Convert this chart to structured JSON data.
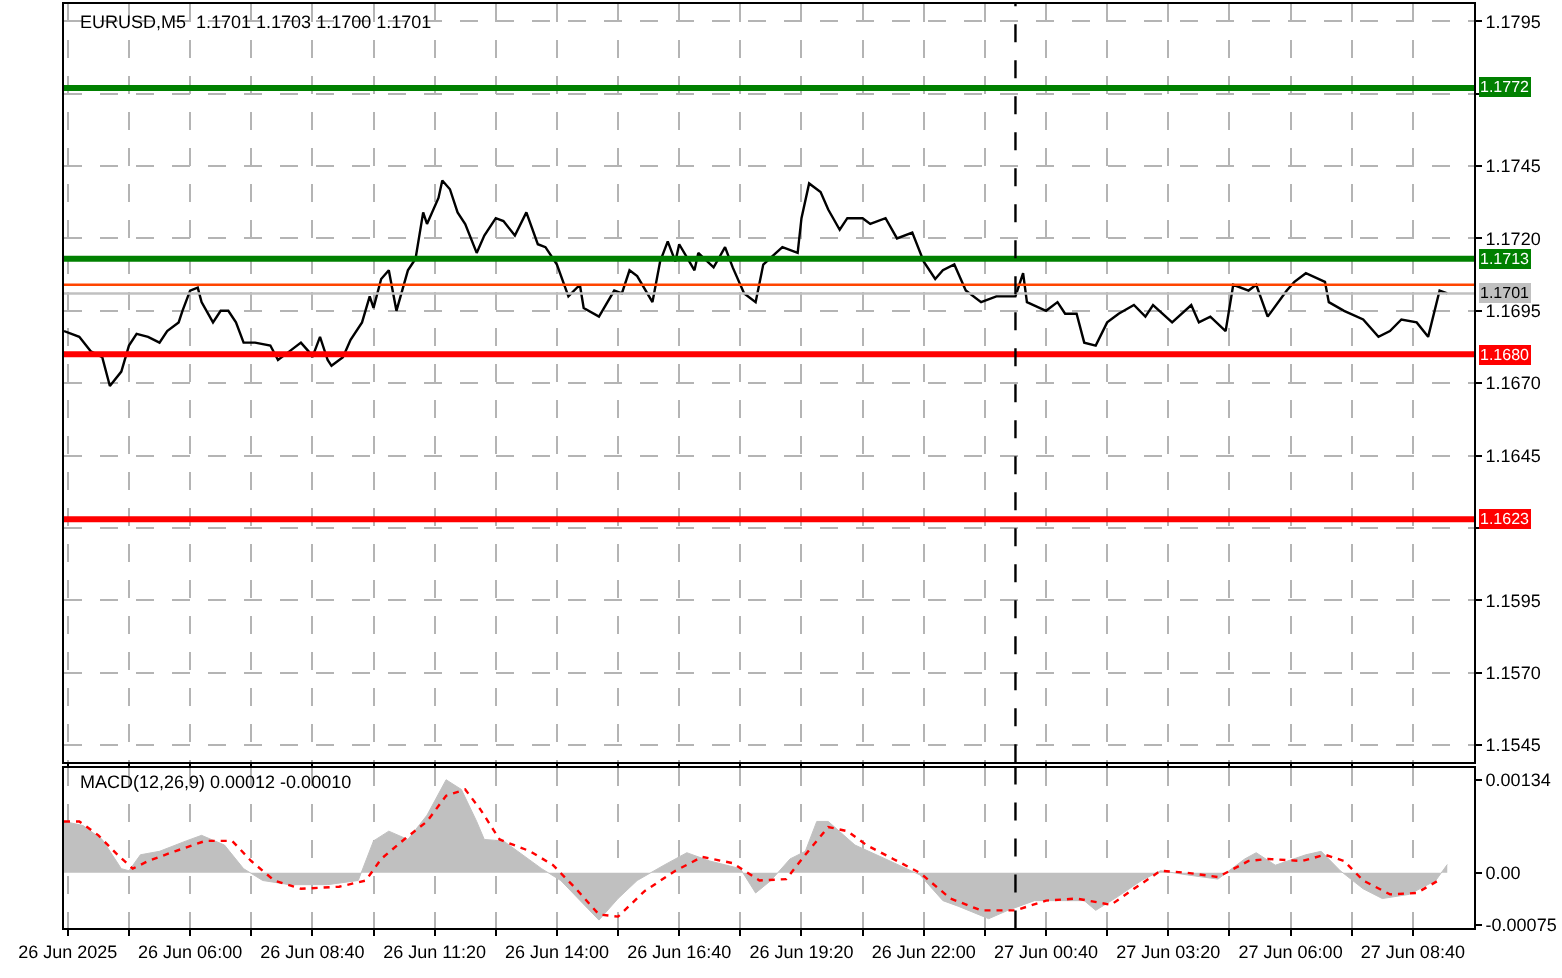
{
  "chart_data": [
    {
      "type": "line",
      "title": "EURUSD,M5  1.1701 1.1703 1.1700 1.1701",
      "x": [
        "2025-06-26T03:15",
        "2025-06-26T03:35",
        "2025-06-26T03:50",
        "2025-06-26T04:05",
        "2025-06-26T04:15",
        "2025-06-26T04:30",
        "2025-06-26T04:40",
        "2025-06-26T04:50",
        "2025-06-26T05:05",
        "2025-06-26T05:20",
        "2025-06-26T05:30",
        "2025-06-26T05:45",
        "2025-06-26T05:50",
        "2025-06-26T06:00",
        "2025-06-26T06:10",
        "2025-06-26T06:15",
        "2025-06-26T06:30",
        "2025-06-26T06:40",
        "2025-06-26T06:50",
        "2025-06-26T07:00",
        "2025-06-26T07:10",
        "2025-06-26T07:25",
        "2025-06-26T07:45",
        "2025-06-26T07:55",
        "2025-06-26T08:10",
        "2025-06-26T08:25",
        "2025-06-26T08:35",
        "2025-06-26T08:40",
        "2025-06-26T08:50",
        "2025-06-26T09:00",
        "2025-06-26T09:05",
        "2025-06-26T09:20",
        "2025-06-26T09:30",
        "2025-06-26T09:45",
        "2025-06-26T09:55",
        "2025-06-26T10:00",
        "2025-06-26T10:10",
        "2025-06-26T10:20",
        "2025-06-26T10:30",
        "2025-06-26T10:45",
        "2025-06-26T10:55",
        "2025-06-26T11:05",
        "2025-06-26T11:10",
        "2025-06-26T11:25",
        "2025-06-26T11:30",
        "2025-06-26T11:40",
        "2025-06-26T11:50",
        "2025-06-26T12:00",
        "2025-06-26T12:15",
        "2025-06-26T12:25",
        "2025-06-26T12:40",
        "2025-06-26T12:50",
        "2025-06-26T13:05",
        "2025-06-26T13:20",
        "2025-06-26T13:35",
        "2025-06-26T13:45",
        "2025-06-26T14:00",
        "2025-06-26T14:15",
        "2025-06-26T14:30",
        "2025-06-26T14:35",
        "2025-06-26T14:55",
        "2025-06-26T15:15",
        "2025-06-26T15:25",
        "2025-06-26T15:35",
        "2025-06-26T15:45",
        "2025-06-26T16:05",
        "2025-06-26T16:15",
        "2025-06-26T16:25",
        "2025-06-26T16:35",
        "2025-06-26T16:40",
        "2025-06-26T17:00",
        "2025-06-26T17:05",
        "2025-06-26T17:25",
        "2025-06-26T17:40",
        "2025-06-26T17:50",
        "2025-06-26T18:05",
        "2025-06-26T18:20",
        "2025-06-26T18:30",
        "2025-06-26T18:55",
        "2025-06-26T19:15",
        "2025-06-26T19:20",
        "2025-06-26T19:30",
        "2025-06-26T19:45",
        "2025-06-26T19:55",
        "2025-06-26T20:10",
        "2025-06-26T20:20",
        "2025-06-26T20:40",
        "2025-06-26T20:50",
        "2025-06-26T21:10",
        "2025-06-26T21:25",
        "2025-06-26T21:45",
        "2025-06-26T22:00",
        "2025-06-26T22:15",
        "2025-06-26T22:25",
        "2025-06-26T22:40",
        "2025-06-26T22:55",
        "2025-06-26T23:15",
        "2025-06-26T23:35",
        "2025-06-27T00:00",
        "2025-06-27T00:10",
        "2025-06-27T00:15",
        "2025-06-27T00:40",
        "2025-06-27T00:55",
        "2025-06-27T01:05",
        "2025-06-27T01:20",
        "2025-06-27T01:30",
        "2025-06-27T01:45",
        "2025-06-27T02:00",
        "2025-06-27T02:15",
        "2025-06-27T02:35",
        "2025-06-27T02:50",
        "2025-06-27T03:00",
        "2025-06-27T03:25",
        "2025-06-27T03:50",
        "2025-06-27T04:00",
        "2025-06-27T04:15",
        "2025-06-27T04:35",
        "2025-06-27T04:45",
        "2025-06-27T05:05",
        "2025-06-27T05:15",
        "2025-06-27T05:30",
        "2025-06-27T05:55",
        "2025-06-27T06:05",
        "2025-06-27T06:20",
        "2025-06-27T06:45",
        "2025-06-27T06:50",
        "2025-06-27T07:10",
        "2025-06-27T07:35",
        "2025-06-27T07:55",
        "2025-06-27T08:10",
        "2025-06-27T08:25",
        "2025-06-27T08:45",
        "2025-06-27T09:00",
        "2025-06-27T09:15",
        "2025-06-27T09:25"
      ],
      "series": [
        {
          "color": "#000000",
          "values": [
            1.1688,
            1.1686,
            1.1681,
            1.1679,
            1.1669,
            1.1674,
            1.1683,
            1.1687,
            1.1686,
            1.1684,
            1.1688,
            1.1691,
            1.1695,
            1.1702,
            1.1703,
            1.1698,
            1.1691,
            1.1695,
            1.1695,
            1.1691,
            1.1684,
            1.1684,
            1.1683,
            1.1678,
            1.1681,
            1.1684,
            1.1681,
            1.1679,
            1.1686,
            1.1678,
            1.1676,
            1.1679,
            1.1685,
            1.1691,
            1.17,
            1.1696,
            1.1706,
            1.1709,
            1.1695,
            1.1709,
            1.1713,
            1.1729,
            1.1725,
            1.1734,
            1.174,
            1.1737,
            1.1729,
            1.1725,
            1.1715,
            1.1721,
            1.1727,
            1.1726,
            1.1721,
            1.1729,
            1.1718,
            1.1717,
            1.1711,
            1.17,
            1.1704,
            1.1696,
            1.1693,
            1.1702,
            1.1701,
            1.1709,
            1.1707,
            1.1698,
            1.1712,
            1.1719,
            1.1712,
            1.1718,
            1.1709,
            1.1715,
            1.171,
            1.1717,
            1.171,
            1.1701,
            1.1698,
            1.1711,
            1.1717,
            1.1715,
            1.1727,
            1.1739,
            1.1736,
            1.173,
            1.1723,
            1.1727,
            1.1727,
            1.1725,
            1.1727,
            1.172,
            1.1722,
            1.1712,
            1.1706,
            1.1709,
            1.1711,
            1.1702,
            1.1698,
            1.17,
            1.17,
            1.1708,
            1.1698,
            1.1695,
            1.1698,
            1.1694,
            1.1694,
            1.1684,
            1.1683,
            1.1691,
            1.1694,
            1.1697,
            1.1693,
            1.1697,
            1.1691,
            1.1697,
            1.1691,
            1.1693,
            1.1688,
            1.1704,
            1.1702,
            1.1704,
            1.1693,
            1.1702,
            1.1705,
            1.1708,
            1.1705,
            1.1698,
            1.1695,
            1.1692,
            1.1686,
            1.1688,
            1.1692,
            1.1691,
            1.1686,
            1.1702,
            1.1701
          ]
        }
      ],
      "xlim": [
        "2025-06-26T03:15",
        "2025-06-27T10:00"
      ],
      "xticks": [
        {
          "value": "2025-06-26T03:20",
          "label": null
        },
        {
          "value": "2025-06-26T04:40",
          "label": null
        },
        {
          "value": "2025-06-26T06:00",
          "label": null
        },
        {
          "value": "2025-06-26T07:20",
          "label": null
        },
        {
          "value": "2025-06-26T08:40",
          "label": null
        },
        {
          "value": "2025-06-26T10:00",
          "label": null
        },
        {
          "value": "2025-06-26T11:20",
          "label": null
        },
        {
          "value": "2025-06-26T12:40",
          "label": null
        },
        {
          "value": "2025-06-26T14:00",
          "label": null
        },
        {
          "value": "2025-06-26T15:20",
          "label": null
        },
        {
          "value": "2025-06-26T16:40",
          "label": null
        },
        {
          "value": "2025-06-26T18:00",
          "label": null
        },
        {
          "value": "2025-06-26T19:20",
          "label": null
        },
        {
          "value": "2025-06-26T20:40",
          "label": null
        },
        {
          "value": "2025-06-26T22:00",
          "label": null
        },
        {
          "value": "2025-06-26T23:20",
          "label": null
        },
        {
          "value": "2025-06-27T00:40",
          "label": null
        },
        {
          "value": "2025-06-27T02:00",
          "label": null
        },
        {
          "value": "2025-06-27T03:20",
          "label": null
        },
        {
          "value": "2025-06-27T04:40",
          "label": null
        },
        {
          "value": "2025-06-27T06:00",
          "label": null
        },
        {
          "value": "2025-06-27T07:20",
          "label": null
        },
        {
          "value": "2025-06-27T08:40",
          "label": null
        }
      ],
      "ylim": [
        1.1539,
        1.1801
      ],
      "yticks": [
        {
          "value": 1.1795,
          "label": "1.1795"
        },
        {
          "value": 1.177,
          "label": null
        },
        {
          "value": 1.1745,
          "label": "1.1745"
        },
        {
          "value": 1.172,
          "label": "1.1720"
        },
        {
          "value": 1.1695,
          "label": "1.1695"
        },
        {
          "value": 1.167,
          "label": "1.1670"
        },
        {
          "value": 1.1645,
          "label": "1.1645"
        },
        {
          "value": 1.162,
          "label": null
        },
        {
          "value": 1.1595,
          "label": "1.1595"
        },
        {
          "value": 1.157,
          "label": "1.1570"
        },
        {
          "value": 1.1545,
          "label": "1.1545"
        }
      ],
      "ref_lines": [
        {
          "axis": "y",
          "value": 1.1772,
          "label": "1.1772",
          "color": "#008000"
        },
        {
          "axis": "y",
          "value": 1.1713,
          "label": "1.1713",
          "color": "#008000"
        },
        {
          "axis": "y",
          "value": 1.1704,
          "color": "#ff4500"
        },
        {
          "axis": "y",
          "value": 1.1701,
          "label": "1.1701",
          "color": "#c0c0c0"
        },
        {
          "axis": "y",
          "value": 1.168,
          "label": "1.1680",
          "color": "#ff0000"
        },
        {
          "axis": "y",
          "value": 1.1623,
          "label": "1.1623",
          "color": "#ff0000"
        },
        {
          "axis": "x",
          "value": "2025-06-27T00:00",
          "color": "#000000",
          "line_style": "dashed"
        }
      ],
      "grid": true,
      "tick_labels": "y"
    },
    {
      "type": "line",
      "title": "MACD(12,26,9) 0.00012 -0.00010",
      "series": [
        {
          "type": "area",
          "color": "#c0c0c0",
          "x": [
            "2025-06-26T03:15",
            "2025-06-26T03:40",
            "2025-06-26T04:05",
            "2025-06-26T04:30",
            "2025-06-26T04:40",
            "2025-06-26T04:55",
            "2025-06-26T05:20",
            "2025-06-26T05:55",
            "2025-06-26T06:15",
            "2025-06-26T06:45",
            "2025-06-26T07:10",
            "2025-06-26T07:35",
            "2025-06-26T08:10",
            "2025-06-26T09:00",
            "2025-06-26T09:40",
            "2025-06-26T10:00",
            "2025-06-26T10:20",
            "2025-06-26T10:45",
            "2025-06-26T11:10",
            "2025-06-26T11:35",
            "2025-06-26T11:55",
            "2025-06-26T12:15",
            "2025-06-26T12:25",
            "2025-06-26T12:50",
            "2025-06-26T13:40",
            "2025-06-26T14:05",
            "2025-06-26T14:40",
            "2025-06-26T14:55",
            "2025-06-26T15:20",
            "2025-06-26T15:45",
            "2025-06-26T16:20",
            "2025-06-26T16:50",
            "2025-06-26T17:20",
            "2025-06-26T18:00",
            "2025-06-26T18:20",
            "2025-06-26T18:40",
            "2025-06-26T19:05",
            "2025-06-26T19:25",
            "2025-06-26T19:40",
            "2025-06-26T19:55",
            "2025-06-26T20:30",
            "2025-06-26T21:10",
            "2025-06-26T21:55",
            "2025-06-26T22:25",
            "2025-06-26T22:45",
            "2025-06-26T23:25",
            "2025-06-26T23:50",
            "2025-06-27T00:25",
            "2025-06-27T01:30",
            "2025-06-27T01:45",
            "2025-06-27T02:10",
            "2025-06-27T02:45",
            "2025-06-27T03:10",
            "2025-06-27T03:45",
            "2025-06-27T04:25",
            "2025-06-27T05:00",
            "2025-06-27T05:15",
            "2025-06-27T05:40",
            "2025-06-27T06:20",
            "2025-06-27T06:40",
            "2025-06-27T07:05",
            "2025-06-27T07:35",
            "2025-06-27T08:00",
            "2025-06-27T08:35",
            "2025-06-27T09:10",
            "2025-06-27T09:25"
          ],
          "values": [
            0.00074,
            0.00068,
            0.00048,
            6e-05,
            3e-05,
            0.00026,
            0.00031,
            0.00046,
            0.00054,
            0.0004,
            6e-05,
            -0.00011,
            -0.00017,
            -0.00017,
            -0.00011,
            0.00046,
            0.0006,
            0.00048,
            0.00083,
            0.00134,
            0.0012,
            0.00074,
            0.00048,
            0.00046,
            6e-05,
            -0.00011,
            -0.00051,
            -0.00068,
            -0.00037,
            -0.00011,
            0.00011,
            0.00029,
            0.00017,
            6e-05,
            -0.00029,
            -0.00011,
            0.0002,
            0.00031,
            0.00074,
            0.00074,
            0.0004,
            0.0002,
            -3e-05,
            -0.0004,
            -0.00048,
            -0.00066,
            -0.00054,
            -0.0004,
            -0.0004,
            -0.00054,
            -0.00037,
            -0.00011,
            3e-05,
            -3e-05,
            -9e-05,
            0.0002,
            0.00029,
            0.00011,
            0.00026,
            0.00031,
            3e-05,
            -0.00023,
            -0.00037,
            -0.00031,
            -0.00011,
            0.00012
          ]
        },
        {
          "type": "line",
          "color": "#ff0000",
          "line_style": "dotted",
          "x": [
            "2025-06-26T03:15",
            "2025-06-26T03:35",
            "2025-06-26T04:00",
            "2025-06-26T04:25",
            "2025-06-26T04:45",
            "2025-06-26T05:05",
            "2025-06-26T05:40",
            "2025-06-26T06:20",
            "2025-06-26T06:55",
            "2025-06-26T07:20",
            "2025-06-26T07:50",
            "2025-06-26T08:25",
            "2025-06-26T09:15",
            "2025-06-26T09:50",
            "2025-06-26T10:10",
            "2025-06-26T10:40",
            "2025-06-26T11:10",
            "2025-06-26T11:35",
            "2025-06-26T12:00",
            "2025-06-26T12:20",
            "2025-06-26T12:45",
            "2025-06-26T13:25",
            "2025-06-26T13:55",
            "2025-06-26T14:25",
            "2025-06-26T14:55",
            "2025-06-26T15:20",
            "2025-06-26T15:55",
            "2025-06-26T16:35",
            "2025-06-26T17:10",
            "2025-06-26T17:50",
            "2025-06-26T18:25",
            "2025-06-26T19:00",
            "2025-06-26T19:25",
            "2025-06-26T19:55",
            "2025-06-26T20:20",
            "2025-06-26T20:45",
            "2025-06-26T21:20",
            "2025-06-26T21:55",
            "2025-06-26T22:35",
            "2025-06-26T23:15",
            "2025-06-27T00:00",
            "2025-06-27T00:40",
            "2025-06-27T01:20",
            "2025-06-27T02:05",
            "2025-06-27T02:35",
            "2025-06-27T03:10",
            "2025-06-27T03:45",
            "2025-06-27T04:25",
            "2025-06-27T05:05",
            "2025-06-27T05:30",
            "2025-06-27T06:15",
            "2025-06-27T06:45",
            "2025-06-27T07:10",
            "2025-06-27T07:35",
            "2025-06-27T08:10",
            "2025-06-27T08:45",
            "2025-06-27T09:15"
          ],
          "values": [
            0.00074,
            0.00074,
            0.00054,
            0.00026,
            6e-05,
            0.00017,
            0.00031,
            0.00046,
            0.00046,
            0.00017,
            -0.00011,
            -0.00023,
            -0.0002,
            -0.00011,
            0.0002,
            0.00048,
            0.00074,
            0.00111,
            0.0012,
            0.00091,
            0.00048,
            0.00031,
            0.00011,
            -0.00023,
            -0.0006,
            -0.00063,
            -0.00026,
            3e-05,
            0.00023,
            0.00014,
            -0.00011,
            -9e-05,
            0.00026,
            0.00066,
            0.0006,
            0.0004,
            0.0002,
            0,
            -0.00037,
            -0.00054,
            -0.00054,
            -0.0004,
            -0.00037,
            -0.00046,
            -0.00023,
            3e-05,
            0,
            -6e-05,
            0.00017,
            0.0002,
            0.00017,
            0.00026,
            0.00017,
            -0.00011,
            -0.00031,
            -0.00029,
            -0.0001
          ]
        }
      ],
      "xlim": [
        "2025-06-26T03:15",
        "2025-06-27T10:00"
      ],
      "xticks": [
        {
          "value": "2025-06-26T03:20",
          "label": "26 Jun 2025"
        },
        {
          "value": "2025-06-26T04:40",
          "label": null
        },
        {
          "value": "2025-06-26T06:00",
          "label": "26 Jun 06:00"
        },
        {
          "value": "2025-06-26T07:20",
          "label": null
        },
        {
          "value": "2025-06-26T08:40",
          "label": "26 Jun 08:40"
        },
        {
          "value": "2025-06-26T10:00",
          "label": null
        },
        {
          "value": "2025-06-26T11:20",
          "label": "26 Jun 11:20"
        },
        {
          "value": "2025-06-26T12:40",
          "label": null
        },
        {
          "value": "2025-06-26T14:00",
          "label": "26 Jun 14:00"
        },
        {
          "value": "2025-06-26T15:20",
          "label": null
        },
        {
          "value": "2025-06-26T16:40",
          "label": "26 Jun 16:40"
        },
        {
          "value": "2025-06-26T18:00",
          "label": null
        },
        {
          "value": "2025-06-26T19:20",
          "label": "26 Jun 19:20"
        },
        {
          "value": "2025-06-26T20:40",
          "label": null
        },
        {
          "value": "2025-06-26T22:00",
          "label": "26 Jun 22:00"
        },
        {
          "value": "2025-06-26T23:20",
          "label": null
        },
        {
          "value": "2025-06-27T00:40",
          "label": "27 Jun 00:40"
        },
        {
          "value": "2025-06-27T02:00",
          "label": null
        },
        {
          "value": "2025-06-27T03:20",
          "label": "27 Jun 03:20"
        },
        {
          "value": "2025-06-27T04:40",
          "label": null
        },
        {
          "value": "2025-06-27T06:00",
          "label": "27 Jun 06:00"
        },
        {
          "value": "2025-06-27T07:20",
          "label": null
        },
        {
          "value": "2025-06-27T08:40",
          "label": "27 Jun 08:40"
        }
      ],
      "ylim": [
        -0.0008,
        0.00151
      ],
      "yticks": [
        {
          "value": 0.00134,
          "label": "0.00134"
        },
        {
          "value": 0,
          "label": "0.00"
        },
        {
          "value": -0.00075,
          "label": "-0.00075"
        }
      ],
      "ref_lines": [
        {
          "axis": "x",
          "value": "2025-06-27T00:00",
          "color": "#000000",
          "line_style": "dashed"
        }
      ],
      "grid": "x"
    }
  ]
}
